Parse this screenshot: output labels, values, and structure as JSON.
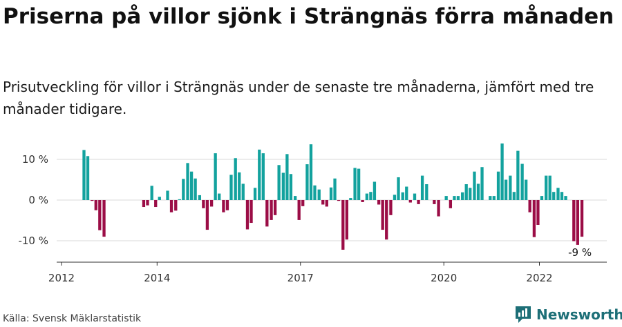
{
  "title": "Priserna på villor sjönk i Strängnäs förra månaden",
  "subtitle": "Prisutveckling för villor i Strängnäs under de senaste tre månaderna, jämfört med tre månader tidigare.",
  "source": "Källa: Svensk Mäklarstatistik",
  "brand": "Newsworthy",
  "colors": {
    "positive": "#13a29e",
    "negative": "#9b0d46",
    "grid": "#d9d9d9",
    "axis": "#333333",
    "brand": "#1d6f77"
  },
  "chart_data": {
    "type": "bar",
    "x_range": [
      2011.85,
      2023.8
    ],
    "ylim": [
      -15,
      16
    ],
    "y_ticks": [
      {
        "value": 10,
        "label": "10 %"
      },
      {
        "value": 0,
        "label": "0 %"
      },
      {
        "value": -10,
        "label": "-10 %"
      }
    ],
    "x_ticks": [
      {
        "value": 2012,
        "label": "2012"
      },
      {
        "value": 2014,
        "label": "2014"
      },
      {
        "value": 2017,
        "label": "2017"
      },
      {
        "value": 2020,
        "label": "2020"
      },
      {
        "value": 2022,
        "label": "2022"
      }
    ],
    "annotation": {
      "label": "-9 %",
      "x": 2022.79,
      "y": -9
    },
    "x": [
      2012.47,
      2012.55,
      2012.64,
      2012.72,
      2012.8,
      2012.89,
      2012.97,
      2013.72,
      2013.8,
      2013.89,
      2013.97,
      2014.05,
      2014.14,
      2014.22,
      2014.3,
      2014.39,
      2014.47,
      2014.55,
      2014.64,
      2014.72,
      2014.8,
      2014.89,
      2014.97,
      2015.05,
      2015.14,
      2015.22,
      2015.3,
      2015.39,
      2015.47,
      2015.55,
      2015.64,
      2015.72,
      2015.8,
      2015.89,
      2015.97,
      2016.05,
      2016.14,
      2016.22,
      2016.3,
      2016.39,
      2016.47,
      2016.55,
      2016.64,
      2016.72,
      2016.8,
      2016.89,
      2016.97,
      2017.05,
      2017.14,
      2017.22,
      2017.3,
      2017.39,
      2017.47,
      2017.55,
      2017.64,
      2017.72,
      2017.8,
      2017.89,
      2017.97,
      2018.05,
      2018.14,
      2018.22,
      2018.3,
      2018.39,
      2018.47,
      2018.55,
      2018.64,
      2018.72,
      2018.8,
      2018.89,
      2018.97,
      2019.05,
      2019.14,
      2019.22,
      2019.3,
      2019.39,
      2019.47,
      2019.55,
      2019.64,
      2019.72,
      2019.8,
      2019.89,
      2020.05,
      2020.14,
      2020.22,
      2020.3,
      2020.39,
      2020.47,
      2020.55,
      2020.64,
      2020.72,
      2020.8,
      2020.89,
      2020.97,
      2021.05,
      2021.14,
      2021.22,
      2021.3,
      2021.39,
      2021.47,
      2021.55,
      2021.64,
      2021.72,
      2021.8,
      2021.89,
      2021.97,
      2022.05,
      2022.14,
      2022.22,
      2022.3,
      2022.39,
      2022.47,
      2022.55,
      2022.64,
      2022.72,
      2022.8,
      2022.89
    ],
    "values": [
      12.3,
      10.8,
      -0.2,
      -2.5,
      -7.4,
      -9.0,
      0,
      -1.7,
      -1.3,
      3.5,
      -1.7,
      0.8,
      0,
      2.3,
      -3.0,
      -2.6,
      0.2,
      5.2,
      9.1,
      7.0,
      5.3,
      1.2,
      -2.0,
      -7.3,
      -1.6,
      11.5,
      1.6,
      -3.0,
      -2.5,
      6.2,
      10.3,
      6.8,
      4.0,
      -7.2,
      -5.6,
      3.0,
      12.4,
      11.5,
      -6.5,
      -4.9,
      -3.7,
      8.6,
      6.7,
      11.3,
      6.4,
      1.0,
      -4.9,
      -1.5,
      8.8,
      13.7,
      3.6,
      2.6,
      -1.1,
      -1.6,
      3.1,
      5.3,
      -0.2,
      -12.2,
      -9.7,
      0.5,
      7.9,
      7.7,
      -0.5,
      1.6,
      2.0,
      4.5,
      -1.1,
      -7.3,
      -9.7,
      -3.7,
      1.3,
      5.6,
      1.9,
      3.3,
      -0.6,
      1.6,
      -1.0,
      6.0,
      3.9,
      0,
      -1.0,
      -4.0,
      1.0,
      -2.0,
      1.0,
      1.0,
      1.9,
      3.9,
      3.0,
      7.0,
      4.0,
      8.1,
      0,
      1.0,
      1.0,
      7.0,
      13.9,
      5.0,
      6.0,
      2.0,
      12.1,
      8.9,
      5.0,
      -3.0,
      -9.1,
      -6.1,
      1.0,
      6.0,
      6.0,
      2.0,
      3.0,
      2.0,
      1.0,
      0,
      -10.1,
      -11.0,
      -9.0
    ]
  }
}
